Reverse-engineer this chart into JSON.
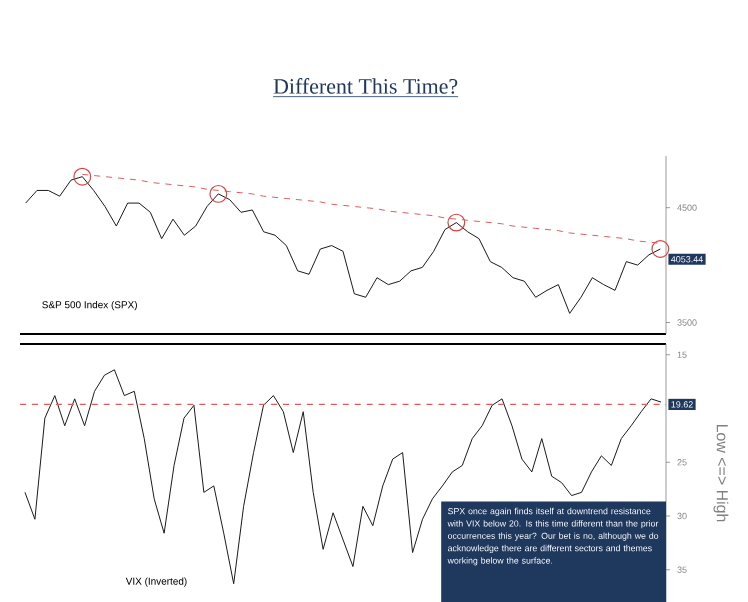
{
  "chart_data": [
    {
      "type": "line",
      "title": "Different This Time?",
      "categories": [
        null,
        null,
        null,
        null,
        null,
        null,
        null,
        null,
        null,
        null,
        null,
        null,
        null,
        null,
        null,
        null,
        null,
        null,
        null,
        null,
        null,
        null,
        null,
        null,
        null,
        null,
        null,
        null,
        null,
        null,
        null,
        null,
        null,
        null,
        null,
        null,
        null,
        null,
        null,
        null,
        null,
        null,
        null,
        null,
        null,
        null,
        null,
        null,
        null,
        null,
        null,
        null,
        null,
        null,
        null,
        null,
        null
      ],
      "series": [
        {
          "name": "S&P 500 Index (SPX)",
          "color": "#1a1a1a",
          "values": [
            4540,
            4650,
            4650,
            4600,
            4740,
            4770,
            4650,
            4510,
            4340,
            4540,
            4540,
            4460,
            4230,
            4400,
            4260,
            4340,
            4510,
            4620,
            4570,
            4460,
            4480,
            4290,
            4260,
            4170,
            3950,
            3920,
            4140,
            4170,
            4120,
            3750,
            3720,
            3890,
            3830,
            3860,
            3950,
            3980,
            4120,
            4310,
            4370,
            4290,
            4230,
            4030,
            3980,
            3890,
            3860,
            3720,
            3780,
            3830,
            3580,
            3720,
            3890,
            3830,
            3780,
            4030,
            4000,
            4090,
            4140
          ]
        },
        {
          "type": "line",
          "color": "#e05a5a",
          "line_style": "dashed",
          "values": [
            null,
            null,
            null,
            null,
            null,
            4790,
            4780,
            4770,
            4760,
            4750,
            4740,
            4720,
            4710,
            4700,
            4690,
            4680,
            4660,
            4650,
            4640,
            4630,
            4620,
            4600,
            4590,
            4580,
            4570,
            4560,
            4550,
            4530,
            4520,
            4510,
            4500,
            4490,
            4470,
            4460,
            4450,
            4440,
            4430,
            4410,
            4400,
            4390,
            4380,
            4370,
            4360,
            4340,
            4330,
            4320,
            4310,
            4300,
            4280,
            4270,
            4260,
            4250,
            4240,
            4230,
            4210,
            4200,
            4190
          ]
        },
        {
          "type": "scatter",
          "color": "#d94040",
          "marker": "circle",
          "values": [
            null,
            null,
            null,
            null,
            null,
            4770,
            null,
            null,
            null,
            null,
            null,
            null,
            null,
            null,
            null,
            null,
            null,
            4620,
            null,
            null,
            null,
            null,
            null,
            null,
            null,
            null,
            null,
            null,
            null,
            null,
            null,
            null,
            null,
            null,
            null,
            null,
            null,
            null,
            4370,
            null,
            null,
            null,
            null,
            null,
            null,
            null,
            null,
            null,
            null,
            null,
            null,
            null,
            null,
            null,
            null,
            null,
            4140
          ]
        }
      ],
      "ylim": [
        3400,
        4950
      ],
      "yticks": [
        3500,
        4500
      ],
      "annotations": [
        "4053.44"
      ]
    },
    {
      "type": "line",
      "ylabel": "Low <=> High",
      "categories": [
        null,
        null,
        null,
        null,
        null,
        null,
        null,
        null,
        null,
        null,
        null,
        null,
        null,
        null,
        null,
        null,
        null,
        null,
        null,
        null,
        null,
        null,
        null,
        null,
        null,
        null,
        null,
        null,
        null,
        null,
        null,
        null,
        null,
        null,
        null,
        null,
        null,
        null,
        null,
        null,
        null,
        null,
        null,
        null,
        null,
        null,
        null,
        null,
        null,
        null,
        null,
        null,
        null,
        null,
        null,
        null,
        null,
        null,
        null,
        null,
        null,
        null,
        null,
        null,
        null
      ],
      "series": [
        {
          "name": "VIX (Inverted)",
          "color": "#1a1a1a",
          "values": [
            27.8,
            30.3,
            20.9,
            18.8,
            21.6,
            19.1,
            21.6,
            18.4,
            16.9,
            16.4,
            18.8,
            18.4,
            22.8,
            28.4,
            31.6,
            25.3,
            20.9,
            19.7,
            27.8,
            27.2,
            31.6,
            36.3,
            29.1,
            24.1,
            19.7,
            18.8,
            20.3,
            24.1,
            20.3,
            27.8,
            33.1,
            29.7,
            32.2,
            34.7,
            29.1,
            30.9,
            27.2,
            24.7,
            24.1,
            33.4,
            30.3,
            28.4,
            27.2,
            25.9,
            25.3,
            22.8,
            21.6,
            19.7,
            19.1,
            21.6,
            24.7,
            25.9,
            22.8,
            26.3,
            26.9,
            28.1,
            27.8,
            25.9,
            24.4,
            25.3,
            22.8,
            21.6,
            20.3,
            19.1,
            19.4
          ]
        }
      ],
      "ylim": [
        38,
        14
      ],
      "yticks": [
        15,
        25,
        30,
        35
      ],
      "ref_lines": [
        {
          "axis": "y",
          "value": 19.62,
          "label": "19.62",
          "color": "#e05a5a",
          "line_style": "dashed"
        }
      ],
      "annotations": [
        "SPX once again finds itself at downtrend resistance with VIX below 20. Is this time different than the prior occurrences this year? Our bet is no, although we do acknowledge there are different sectors and themes working below the surface."
      ]
    }
  ]
}
